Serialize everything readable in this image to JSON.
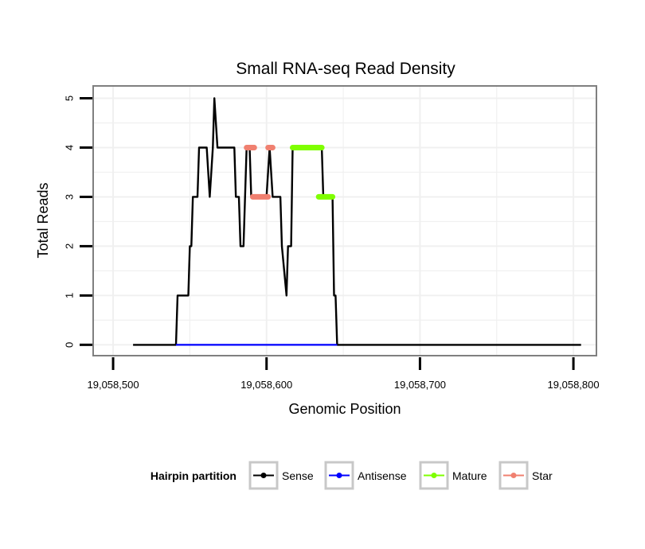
{
  "chart_data": {
    "type": "line",
    "title": "Small RNA-seq Read Density",
    "xlabel": "Genomic Position",
    "ylabel": "Total Reads",
    "xlim": [
      19058487,
      19058815
    ],
    "ylim": [
      -0.22,
      5.25
    ],
    "x_ticks": [
      19058500,
      19058600,
      19058700,
      19058800
    ],
    "x_tick_labels": [
      "19,058,500",
      "19,058,600",
      "19,058,700",
      "19,058,800"
    ],
    "y_ticks": [
      0,
      1,
      2,
      3,
      4,
      5
    ],
    "y_tick_labels": [
      "0",
      "1",
      "2",
      "3",
      "4",
      "5"
    ],
    "grid": true,
    "legend": {
      "title": "Hairpin partition",
      "position": "bottom",
      "entries": [
        "Sense",
        "Antisense",
        "Mature",
        "Star"
      ]
    },
    "series": [
      {
        "name": "Sense",
        "color": "#000000",
        "points": [
          [
            19058513,
            0
          ],
          [
            19058541,
            0
          ],
          [
            19058542,
            1
          ],
          [
            19058549,
            1
          ],
          [
            19058550,
            2
          ],
          [
            19058551,
            2
          ],
          [
            19058552,
            3
          ],
          [
            19058555,
            3
          ],
          [
            19058556,
            4
          ],
          [
            19058561,
            4
          ],
          [
            19058563,
            3
          ],
          [
            19058565,
            4
          ],
          [
            19058566,
            5
          ],
          [
            19058568,
            4
          ],
          [
            19058579,
            4
          ],
          [
            19058580,
            3
          ],
          [
            19058582,
            3
          ],
          [
            19058583,
            2
          ],
          [
            19058585,
            2
          ],
          [
            19058587,
            4
          ],
          [
            19058589,
            4
          ],
          [
            19058590,
            3
          ],
          [
            19058600,
            3
          ],
          [
            19058602,
            4
          ],
          [
            19058604,
            3
          ],
          [
            19058609,
            3
          ],
          [
            19058610,
            2
          ],
          [
            19058613,
            1
          ],
          [
            19058614,
            2
          ],
          [
            19058616,
            2
          ],
          [
            19058617,
            4
          ],
          [
            19058636,
            4
          ],
          [
            19058637,
            3
          ],
          [
            19058643,
            3
          ],
          [
            19058644,
            1
          ],
          [
            19058645,
            1
          ],
          [
            19058646,
            0
          ],
          [
            19058805,
            0
          ]
        ]
      },
      {
        "name": "Antisense",
        "color": "#0000ff",
        "points": [
          [
            19058541,
            0
          ],
          [
            19058646,
            0
          ]
        ]
      },
      {
        "name": "Mature",
        "color": "#7fff00",
        "segments": [
          [
            [
              19058617,
              4
            ],
            [
              19058636,
              4
            ]
          ],
          [
            [
              19058634,
              3
            ],
            [
              19058643,
              3
            ]
          ]
        ]
      },
      {
        "name": "Star",
        "color": "#f08070",
        "segments": [
          [
            [
              19058587,
              4
            ],
            [
              19058592,
              4
            ]
          ],
          [
            [
              19058591,
              3
            ],
            [
              19058601,
              3
            ]
          ],
          [
            [
              19058601,
              4
            ],
            [
              19058604,
              4
            ]
          ]
        ]
      }
    ]
  }
}
